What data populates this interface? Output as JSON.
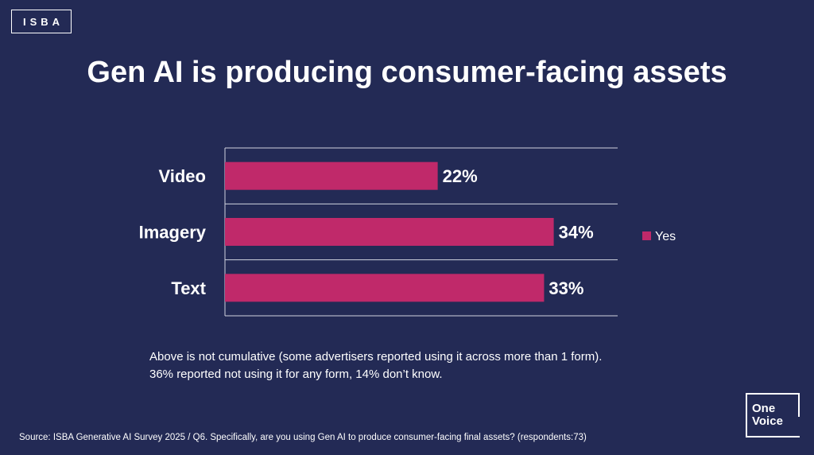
{
  "logo": {
    "text": "ISBA"
  },
  "title": "Gen AI is producing consumer-facing assets",
  "chart_data": {
    "type": "bar",
    "orientation": "horizontal",
    "categories": [
      "Video",
      "Imagery",
      "Text"
    ],
    "series": [
      {
        "name": "Yes",
        "values": [
          22,
          34,
          33
        ],
        "color": "#c0296a"
      }
    ],
    "value_suffix": "%",
    "xlim": [
      0,
      40
    ],
    "grid": true,
    "legend": "right"
  },
  "notes": [
    "Above is not cumulative (some advertisers reported using it across more than 1 form).",
    "36% reported not using it for any form, 14% don’t know."
  ],
  "source": "Source: ISBA Generative AI Survey 2025 / Q6. Specifically, are you using Gen AI to produce consumer-facing final assets?  (respondents:73)",
  "badge": {
    "line1": "One",
    "line2": "Voice"
  }
}
